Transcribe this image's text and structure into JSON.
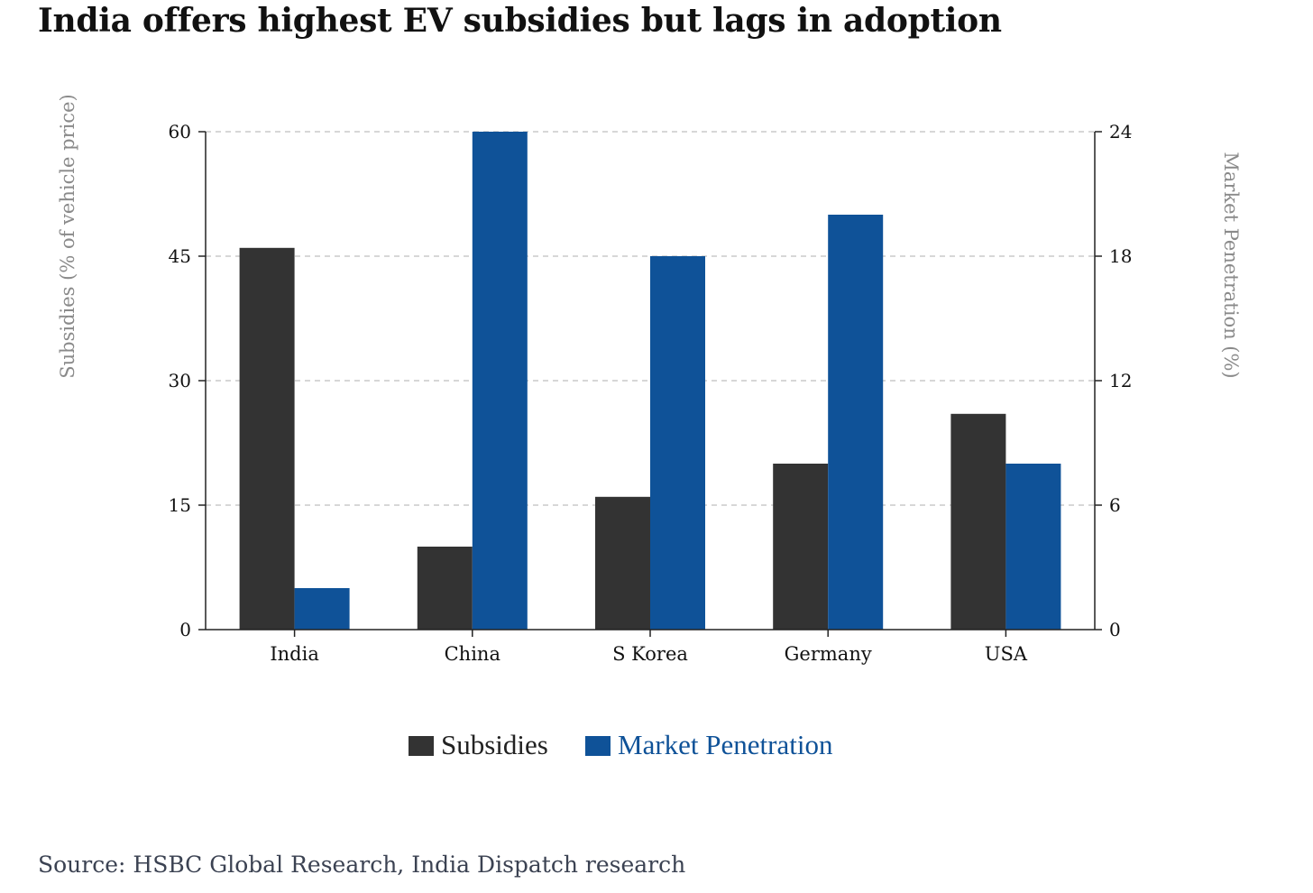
{
  "chart_data": {
    "type": "bar",
    "title": "India offers highest EV subsidies but lags in adoption",
    "categories": [
      "India",
      "China",
      "S Korea",
      "Germany",
      "USA"
    ],
    "series": [
      {
        "name": "Subsidies",
        "axis": "left",
        "color": "#333333",
        "values": [
          46,
          10,
          16,
          20,
          26
        ]
      },
      {
        "name": "Market Penetration",
        "axis": "right",
        "color": "#0f5298",
        "values": [
          2,
          24,
          18,
          20,
          8
        ]
      }
    ],
    "ylabel": "Subsidies (% of vehicle price)",
    "ylabel_right": "Market Penetration (%)",
    "ylim": [
      0,
      60
    ],
    "ylim_right": [
      0,
      24
    ],
    "yticks": [
      "0",
      "15",
      "30",
      "45",
      "60"
    ],
    "yticks_right": [
      "0",
      "6",
      "12",
      "18",
      "24"
    ],
    "grid": true,
    "legend_position": "bottom-center"
  },
  "source": "Source: HSBC Global Research, India Dispatch research"
}
